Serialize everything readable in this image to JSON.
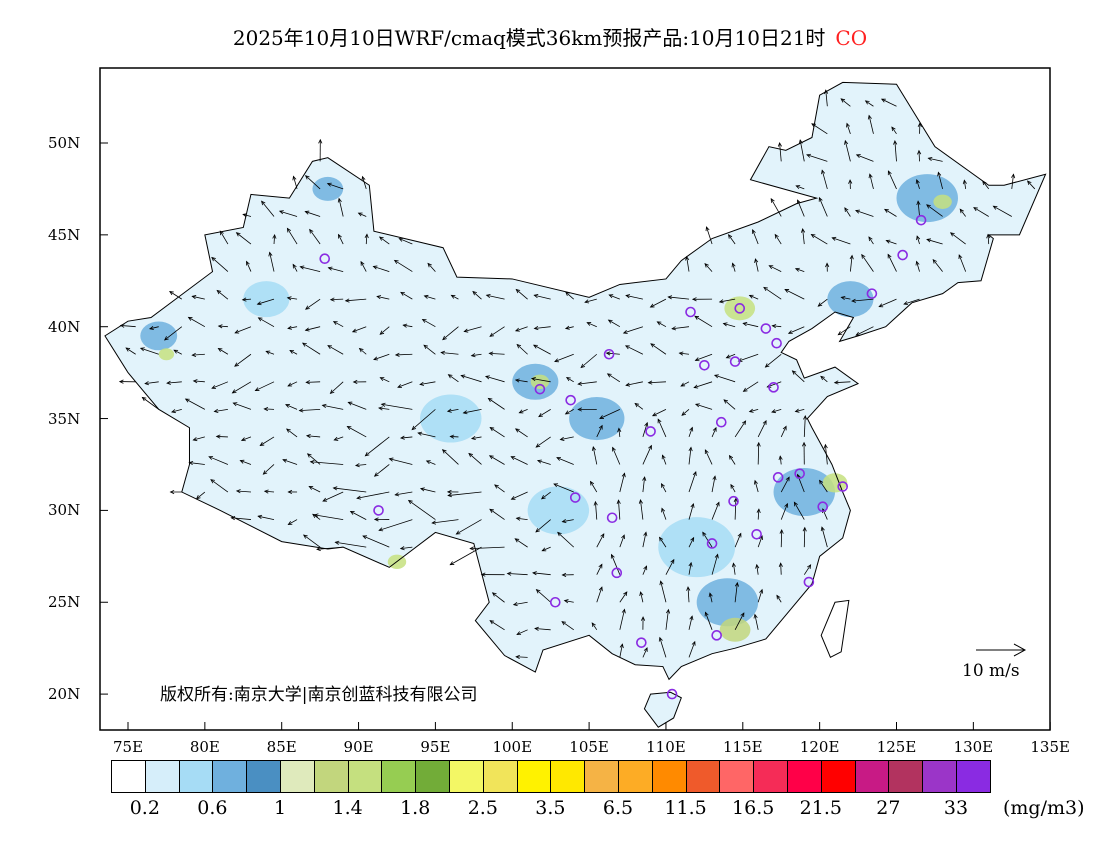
{
  "title": {
    "main": "2025年10月10日WRF/cmaq模式36km预报产品:10月10日21时",
    "species": "CO",
    "species_color": "#ff2020"
  },
  "axes": {
    "lat_ticks": [
      {
        "value": 50,
        "label": "50N"
      },
      {
        "value": 45,
        "label": "45N"
      },
      {
        "value": 40,
        "label": "40N"
      },
      {
        "value": 35,
        "label": "35N"
      },
      {
        "value": 30,
        "label": "30N"
      },
      {
        "value": 25,
        "label": "25N"
      },
      {
        "value": 20,
        "label": "20N"
      }
    ],
    "lon_ticks": [
      {
        "value": 75,
        "label": "75E"
      },
      {
        "value": 80,
        "label": "80E"
      },
      {
        "value": 85,
        "label": "85E"
      },
      {
        "value": 90,
        "label": "90E"
      },
      {
        "value": 95,
        "label": "95E"
      },
      {
        "value": 100,
        "label": "100E"
      },
      {
        "value": 105,
        "label": "105E"
      },
      {
        "value": 110,
        "label": "110E"
      },
      {
        "value": 115,
        "label": "115E"
      },
      {
        "value": 120,
        "label": "120E"
      },
      {
        "value": 125,
        "label": "125E"
      },
      {
        "value": 130,
        "label": "130E"
      },
      {
        "value": 135,
        "label": "135E"
      }
    ],
    "lon_range": [
      73.2,
      135
    ],
    "lat_range": [
      17.9,
      54
    ]
  },
  "colorbar": {
    "colors": [
      "#ffffff",
      "#d6eefa",
      "#a6dcf5",
      "#6fb0de",
      "#4a8fc2",
      "#dfeabc",
      "#c2d67d",
      "#c5e07f",
      "#96cd52",
      "#72ac38",
      "#f3f765",
      "#f1e45a",
      "#fff200",
      "#ffe800",
      "#f5b345",
      "#fdac25",
      "#ff8a00",
      "#ef5a2b",
      "#ff6666",
      "#f52c57",
      "#ff0048",
      "#ff0000",
      "#c81a85",
      "#b2335f",
      "#9b35c8",
      "#8a2be2"
    ],
    "labels": [
      "0.2",
      "0.6",
      "1",
      "1.4",
      "1.8",
      "2.5",
      "3.5",
      "6.5",
      "11.5",
      "16.5",
      "21.5",
      "27",
      "33"
    ],
    "unit": "(mg/m3)"
  },
  "copyright": "版权所有:南京大学|南京创蓝科技有限公司",
  "wind_scale": "10 m/s",
  "station_markers": [
    [
      87.8,
      43.7
    ],
    [
      101.8,
      36.6
    ],
    [
      103.8,
      36.0
    ],
    [
      106.3,
      38.5
    ],
    [
      109.0,
      34.3
    ],
    [
      111.6,
      40.8
    ],
    [
      112.5,
      37.9
    ],
    [
      114.5,
      38.1
    ],
    [
      114.8,
      41.0
    ],
    [
      116.5,
      39.9
    ],
    [
      117.2,
      39.1
    ],
    [
      113.6,
      34.8
    ],
    [
      117.0,
      36.7
    ],
    [
      117.3,
      31.8
    ],
    [
      118.7,
      32.0
    ],
    [
      121.5,
      31.3
    ],
    [
      120.2,
      30.2
    ],
    [
      114.4,
      30.5
    ],
    [
      113.0,
      28.2
    ],
    [
      115.9,
      28.7
    ],
    [
      119.3,
      26.1
    ],
    [
      113.3,
      23.2
    ],
    [
      108.4,
      22.8
    ],
    [
      110.4,
      20.0
    ],
    [
      106.8,
      26.6
    ],
    [
      102.8,
      25.0
    ],
    [
      106.5,
      29.6
    ],
    [
      104.1,
      30.7
    ],
    [
      91.3,
      30.0
    ],
    [
      123.4,
      41.8
    ],
    [
      125.4,
      43.9
    ],
    [
      126.6,
      45.8
    ]
  ]
}
